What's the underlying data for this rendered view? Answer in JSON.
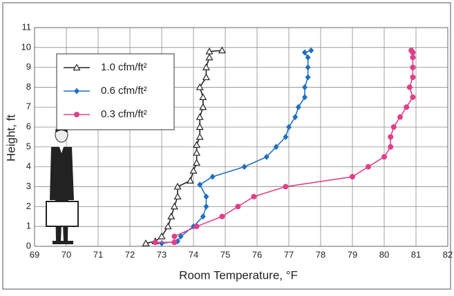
{
  "chart_data": {
    "type": "line",
    "xlabel": "Room Temperature, °F",
    "ylabel": "Height, ft",
    "xlim": [
      69,
      82
    ],
    "xticks": [
      69,
      70,
      71,
      72,
      73,
      74,
      75,
      76,
      77,
      78,
      79,
      80,
      81,
      82
    ],
    "ylim": [
      0,
      11
    ],
    "yticks": [
      0,
      1,
      2,
      3,
      4,
      5,
      6,
      7,
      8,
      9,
      10,
      11
    ],
    "grid": true,
    "legend": "upper left",
    "series": [
      {
        "name": "1.0 cfm/ft²",
        "color": "#222222",
        "marker": "triangle",
        "x": [
          72.5,
          72.8,
          73.0,
          73.2,
          73.3,
          73.4,
          73.5,
          73.5,
          73.9,
          74.0,
          74.1,
          74.1,
          74.1,
          74.2,
          74.2,
          74.2,
          74.3,
          74.3,
          74.2,
          74.4,
          74.4,
          74.5,
          74.5,
          74.9
        ],
        "values": [
          0.15,
          0.25,
          0.5,
          1,
          1.5,
          2,
          2.5,
          3,
          3.3,
          3.8,
          4.2,
          4.7,
          5.1,
          5.5,
          6,
          6.5,
          7,
          7.5,
          8,
          8.5,
          9,
          9.5,
          9.8,
          9.85
        ]
      },
      {
        "name": "0.6 cfm/ft²",
        "color": "#1f6fc0",
        "marker": "diamond",
        "x": [
          73.0,
          73.5,
          73.6,
          74.0,
          74.3,
          74.4,
          74.4,
          74.2,
          74.6,
          75.6,
          76.3,
          76.6,
          76.9,
          77.0,
          77.2,
          77.3,
          77.5,
          77.5,
          77.6,
          77.6,
          77.6,
          77.5,
          77.7
        ],
        "values": [
          0.15,
          0.25,
          0.5,
          1,
          1.5,
          2,
          2.5,
          3.1,
          3.5,
          4,
          4.5,
          5,
          5.5,
          6,
          6.5,
          7,
          7.5,
          8,
          8.5,
          9,
          9.5,
          9.75,
          9.85
        ]
      },
      {
        "name": "0.3 cfm/ft²",
        "color": "#e0408a",
        "marker": "circle",
        "x": [
          72.8,
          73.4,
          73.4,
          74.1,
          74.9,
          75.4,
          75.9,
          76.9,
          79.0,
          79.5,
          80.0,
          80.2,
          80.2,
          80.3,
          80.5,
          80.7,
          80.9,
          80.8,
          80.9,
          80.9,
          80.9,
          80.9,
          80.85
        ],
        "values": [
          0.2,
          0.2,
          0.5,
          1,
          1.5,
          2,
          2.5,
          3,
          3.5,
          4,
          4.5,
          5,
          5.5,
          6,
          6.5,
          7,
          7.5,
          8,
          8.5,
          9,
          9.5,
          9.75,
          9.85
        ]
      }
    ]
  }
}
